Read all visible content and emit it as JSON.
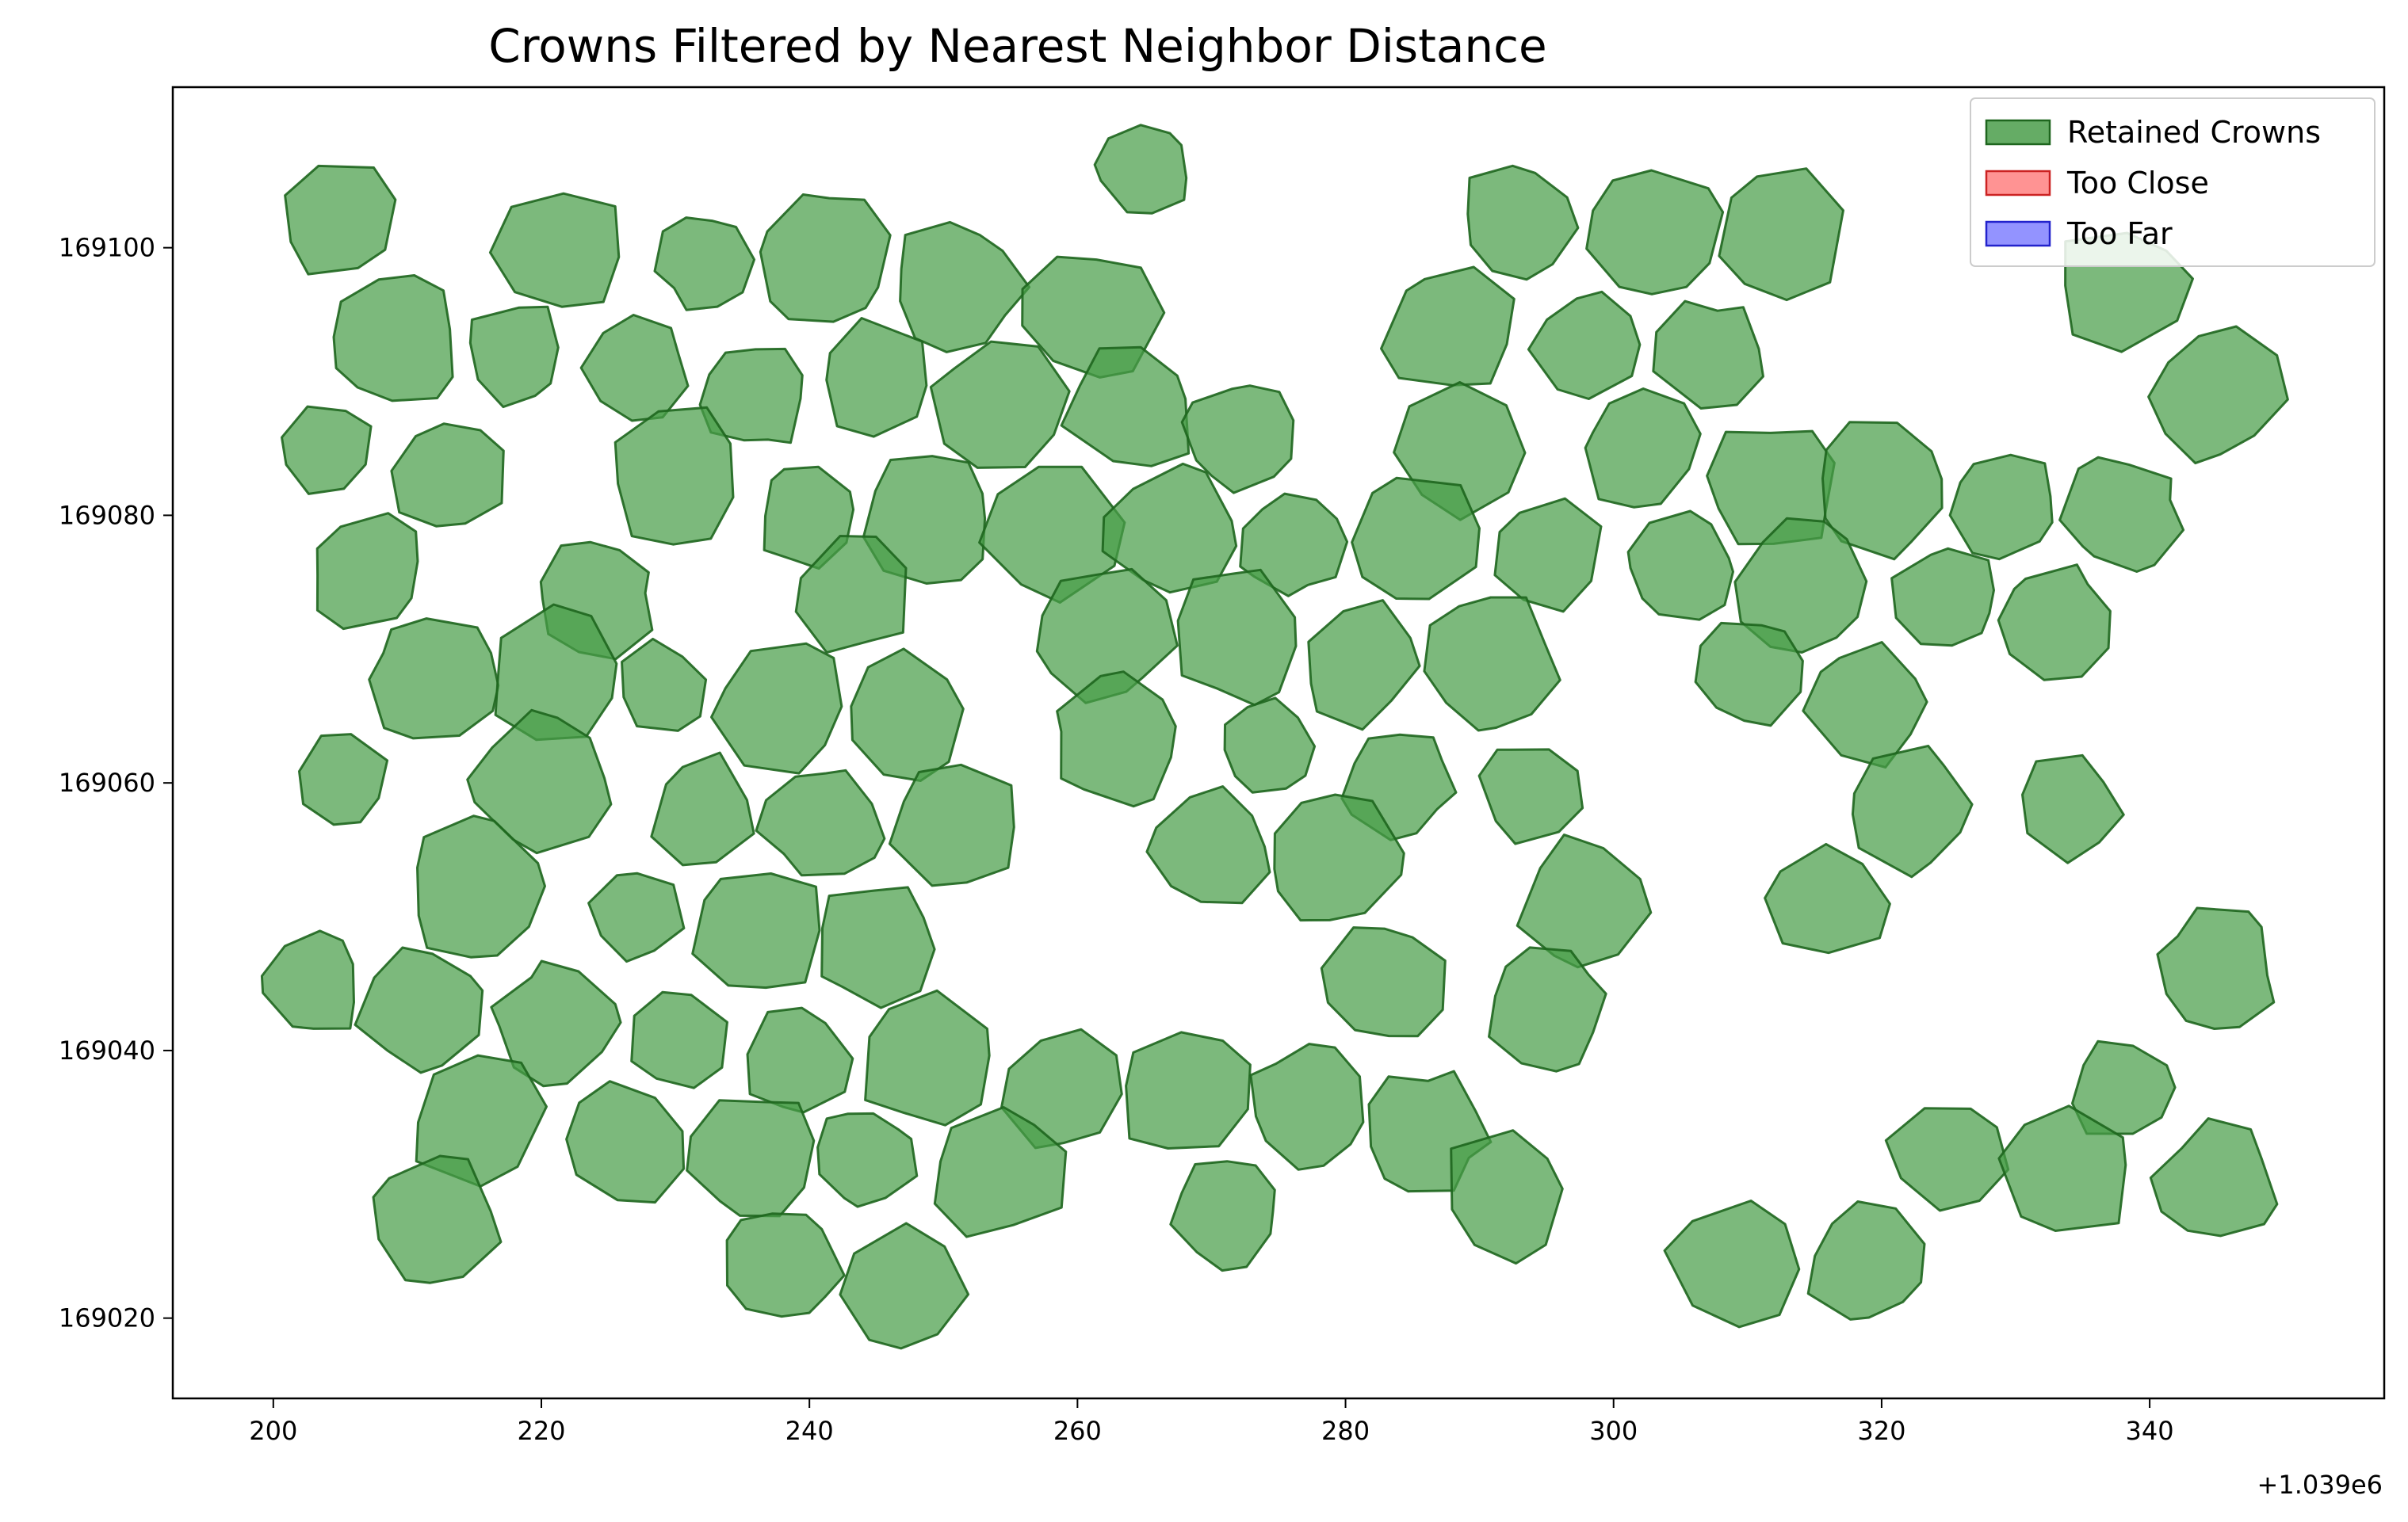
{
  "chart_data": {
    "type": "scatter",
    "title": "Crowns Filtered by Nearest Neighbor Distance",
    "xlabel": "",
    "ylabel": "",
    "x_offset_label": "+1.039e6",
    "xlim": [
      192.5,
      357.5
    ],
    "ylim": [
      169014,
      169112
    ],
    "x_ticks": [
      200,
      220,
      240,
      260,
      280,
      300,
      320,
      340
    ],
    "y_ticks": [
      169020,
      169040,
      169060,
      169080,
      169100
    ],
    "grid": false,
    "legend_position": "top-right",
    "colors": {
      "retained_fill": "#4a9e4a",
      "retained_edge": "#1e661e",
      "too_close_fill": "#ff8080",
      "too_close_edge": "#cc2222",
      "too_far_fill": "#8080ff",
      "too_far_edge": "#2222cc"
    },
    "legend": [
      {
        "label": "Retained Crowns",
        "key": "retained"
      },
      {
        "label": "Too Close",
        "key": "too_close"
      },
      {
        "label": "Too Far",
        "key": "too_far"
      }
    ],
    "series": [
      {
        "name": "Retained Crowns",
        "crowns": [
          [
            205,
            169102,
            4.5
          ],
          [
            265,
            169106,
            3.5
          ],
          [
            293,
            169102,
            4.5
          ],
          [
            303,
            169101,
            5
          ],
          [
            312,
            169101,
            5
          ],
          [
            221,
            169100,
            5
          ],
          [
            232,
            169099,
            3.5
          ],
          [
            241,
            169099,
            5
          ],
          [
            251,
            169097,
            5
          ],
          [
            261,
            169095,
            5
          ],
          [
            338,
            169097,
            5
          ],
          [
            288,
            169094,
            5
          ],
          [
            298,
            169093,
            4
          ],
          [
            307,
            169092,
            4
          ],
          [
            209,
            169093,
            5
          ],
          [
            218,
            169092,
            4
          ],
          [
            227,
            169091,
            4
          ],
          [
            236,
            169089,
            4
          ],
          [
            245,
            169090,
            4.5
          ],
          [
            254,
            169088,
            5
          ],
          [
            264,
            169088,
            5
          ],
          [
            272,
            169086,
            4
          ],
          [
            345,
            169089,
            5
          ],
          [
            204,
            169085,
            3.5
          ],
          [
            213,
            169083,
            4.5
          ],
          [
            289,
            169085,
            5
          ],
          [
            302,
            169085,
            4.5
          ],
          [
            312,
            169082,
            5
          ],
          [
            320,
            169082,
            5
          ],
          [
            329,
            169081,
            4
          ],
          [
            338,
            169080,
            4.5
          ],
          [
            230,
            169083,
            5
          ],
          [
            240,
            169080,
            4
          ],
          [
            249,
            169080,
            5
          ],
          [
            258,
            169079,
            5
          ],
          [
            267,
            169079,
            5
          ],
          [
            276,
            169078,
            4
          ],
          [
            285,
            169078,
            5
          ],
          [
            295,
            169077,
            4.5
          ],
          [
            305,
            169076,
            4
          ],
          [
            314,
            169075,
            5
          ],
          [
            325,
            169074,
            4
          ],
          [
            333,
            169072,
            4.5
          ],
          [
            207,
            169076,
            4.5
          ],
          [
            224,
            169074,
            4.5
          ],
          [
            243,
            169074,
            4.5
          ],
          [
            262,
            169071,
            5
          ],
          [
            272,
            169071,
            5
          ],
          [
            281,
            169069,
            4.5
          ],
          [
            291,
            169069,
            5
          ],
          [
            310,
            169068,
            4
          ],
          [
            319,
            169066,
            4.5
          ],
          [
            212,
            169068,
            5
          ],
          [
            221,
            169068,
            5
          ],
          [
            229,
            169067,
            3.5
          ],
          [
            238,
            169066,
            5
          ],
          [
            247,
            169065,
            4.5
          ],
          [
            263,
            169063,
            5
          ],
          [
            274,
            169063,
            3.5
          ],
          [
            284,
            169060,
            4
          ],
          [
            294,
            169059,
            4
          ],
          [
            322,
            169058,
            4.5
          ],
          [
            334,
            169058,
            4
          ],
          [
            205,
            169060,
            3.5
          ],
          [
            220,
            169060,
            5
          ],
          [
            232,
            169058,
            4
          ],
          [
            241,
            169057,
            4.5
          ],
          [
            251,
            169057,
            5
          ],
          [
            270,
            169055,
            4.5
          ],
          [
            279,
            169054,
            5
          ],
          [
            298,
            169051,
            5
          ],
          [
            316,
            169051,
            4.5
          ],
          [
            215,
            169052,
            5
          ],
          [
            227,
            169050,
            3.5
          ],
          [
            236,
            169049,
            5
          ],
          [
            245,
            169048,
            4.5
          ],
          [
            283,
            169045,
            4.5
          ],
          [
            295,
            169043,
            4.5
          ],
          [
            345,
            169046,
            4.5
          ],
          [
            203,
            169045,
            4
          ],
          [
            211,
            169043,
            4.5
          ],
          [
            221,
            169042,
            4.5
          ],
          [
            230,
            169041,
            4
          ],
          [
            239,
            169039,
            4
          ],
          [
            249,
            169039,
            5
          ],
          [
            259,
            169037,
            4.5
          ],
          [
            268,
            169037,
            5
          ],
          [
            277,
            169036,
            4.5
          ],
          [
            286,
            169034,
            4.5
          ],
          [
            338,
            169037,
            4
          ],
          [
            215,
            169035,
            5
          ],
          [
            226,
            169033,
            4.5
          ],
          [
            236,
            169032,
            5
          ],
          [
            244,
            169032,
            4
          ],
          [
            254,
            169031,
            5
          ],
          [
            292,
            169029,
            5
          ],
          [
            325,
            169032,
            4.5
          ],
          [
            334,
            169031,
            5
          ],
          [
            345,
            169030,
            4.5
          ],
          [
            271,
            169028,
            4
          ],
          [
            212,
            169027,
            5
          ],
          [
            238,
            169024,
            4.5
          ],
          [
            247,
            169022,
            5
          ],
          [
            309,
            169024,
            5
          ],
          [
            319,
            169024,
            4.5
          ]
        ]
      },
      {
        "name": "Too Close",
        "crowns": []
      },
      {
        "name": "Too Far",
        "crowns": []
      }
    ]
  }
}
